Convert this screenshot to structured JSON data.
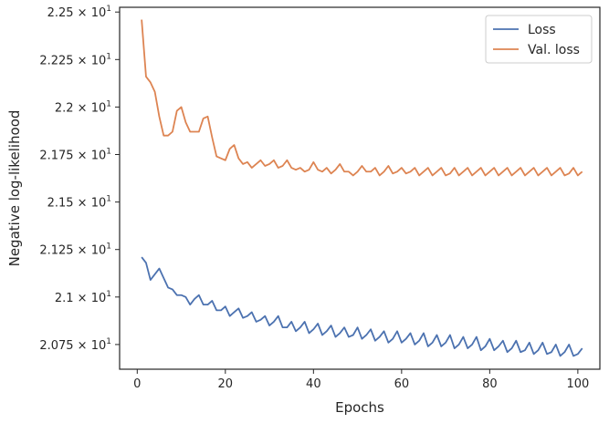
{
  "chart_data": {
    "type": "line",
    "xlabel": "Epochs",
    "ylabel": "Negative log-likelihood",
    "xlim": [
      -4,
      105
    ],
    "ylim": [
      20.62,
      22.525
    ],
    "xticks": [
      0,
      20,
      40,
      60,
      80,
      100
    ],
    "xtick_labels": [
      "0",
      "20",
      "40",
      "60",
      "80",
      "100"
    ],
    "yticks": [
      20.75,
      21.0,
      21.25,
      21.5,
      21.75,
      22.0,
      22.25,
      22.5
    ],
    "ytick_mantissas": [
      "2.075",
      "2.1",
      "2.125",
      "2.15",
      "2.175",
      "2.2",
      "2.225",
      "2.25"
    ],
    "ytick_base": "10",
    "ytick_exponent": "1",
    "grid": false,
    "legend_position": "top-right",
    "series": [
      {
        "name": "Loss",
        "color": "#4c72b0",
        "x_start": 1,
        "values": [
          21.21,
          21.18,
          21.09,
          21.12,
          21.15,
          21.1,
          21.05,
          21.04,
          21.01,
          21.01,
          21.0,
          20.96,
          20.99,
          21.01,
          20.96,
          20.96,
          20.98,
          20.93,
          20.93,
          20.95,
          20.9,
          20.92,
          20.94,
          20.89,
          20.9,
          20.92,
          20.87,
          20.88,
          20.9,
          20.85,
          20.87,
          20.9,
          20.84,
          20.84,
          20.87,
          20.82,
          20.84,
          20.87,
          20.81,
          20.83,
          20.86,
          20.8,
          20.82,
          20.85,
          20.79,
          20.81,
          20.84,
          20.79,
          20.8,
          20.84,
          20.78,
          20.8,
          20.83,
          20.77,
          20.79,
          20.82,
          20.76,
          20.78,
          20.82,
          20.76,
          20.78,
          20.81,
          20.75,
          20.77,
          20.81,
          20.74,
          20.76,
          20.8,
          20.74,
          20.76,
          20.8,
          20.73,
          20.75,
          20.79,
          20.73,
          20.75,
          20.79,
          20.72,
          20.74,
          20.78,
          20.72,
          20.74,
          20.77,
          20.71,
          20.73,
          20.77,
          20.71,
          20.72,
          20.76,
          20.7,
          20.72,
          20.76,
          20.7,
          20.71,
          20.75,
          20.69,
          20.71,
          20.75,
          20.69,
          20.7,
          20.73
        ]
      },
      {
        "name": "Val. loss",
        "color": "#dd8452",
        "x_start": 1,
        "values": [
          22.46,
          22.16,
          22.13,
          22.08,
          21.95,
          21.85,
          21.85,
          21.87,
          21.98,
          22.0,
          21.92,
          21.87,
          21.87,
          21.87,
          21.94,
          21.95,
          21.84,
          21.74,
          21.73,
          21.72,
          21.78,
          21.8,
          21.73,
          21.7,
          21.71,
          21.68,
          21.7,
          21.72,
          21.69,
          21.7,
          21.72,
          21.68,
          21.69,
          21.72,
          21.68,
          21.67,
          21.68,
          21.66,
          21.67,
          21.71,
          21.67,
          21.66,
          21.68,
          21.65,
          21.67,
          21.7,
          21.66,
          21.66,
          21.64,
          21.66,
          21.69,
          21.66,
          21.66,
          21.68,
          21.64,
          21.66,
          21.69,
          21.65,
          21.66,
          21.68,
          21.65,
          21.66,
          21.68,
          21.64,
          21.66,
          21.68,
          21.64,
          21.66,
          21.68,
          21.64,
          21.65,
          21.68,
          21.64,
          21.66,
          21.68,
          21.64,
          21.66,
          21.68,
          21.64,
          21.66,
          21.68,
          21.64,
          21.66,
          21.68,
          21.64,
          21.66,
          21.68,
          21.64,
          21.66,
          21.68,
          21.64,
          21.66,
          21.68,
          21.64,
          21.66,
          21.68,
          21.64,
          21.65,
          21.68,
          21.64,
          21.66
        ]
      }
    ]
  }
}
